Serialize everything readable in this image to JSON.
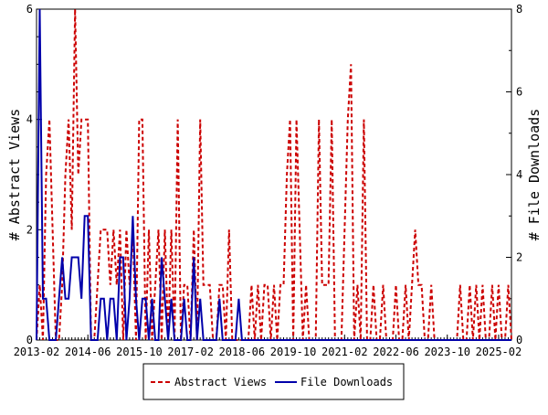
{
  "chart_data": {
    "type": "line",
    "title": "",
    "ylabel_left": "# Abstract Views",
    "ylabel_right": "# File Downloads",
    "x_ticks": [
      "2013-02",
      "2014-06",
      "2015-10",
      "2017-02",
      "2018-06",
      "2019-10",
      "2021-02",
      "2022-06",
      "2023-10",
      "2025-02"
    ],
    "x_range": [
      "2013-02",
      "2025-06"
    ],
    "ylim_left": [
      0,
      6
    ],
    "ylim_right": [
      0,
      8
    ],
    "y_ticks_left": [
      0,
      2,
      4,
      6
    ],
    "y_ticks_right": [
      0,
      2,
      4,
      6,
      8
    ],
    "grid": false,
    "legend_position": "bottom",
    "series": [
      {
        "name": "Abstract Views",
        "axis": "left",
        "color": "#cc0000",
        "style": "dashed",
        "points": [
          [
            "2013-02",
            0
          ],
          [
            "2013-03",
            1
          ],
          [
            "2013-04",
            0
          ],
          [
            "2013-05",
            3
          ],
          [
            "2013-06",
            4
          ],
          [
            "2013-07",
            2
          ],
          [
            "2013-08",
            0
          ],
          [
            "2013-09",
            0
          ],
          [
            "2013-10",
            1
          ],
          [
            "2013-11",
            3
          ],
          [
            "2013-12",
            4
          ],
          [
            "2014-01",
            2
          ],
          [
            "2014-02",
            6
          ],
          [
            "2014-03",
            3
          ],
          [
            "2014-04",
            4
          ],
          [
            "2014-05",
            4
          ],
          [
            "2014-06",
            4
          ],
          [
            "2014-07",
            0
          ],
          [
            "2014-08",
            0
          ],
          [
            "2014-09",
            1
          ],
          [
            "2014-10",
            2
          ],
          [
            "2014-11",
            2
          ],
          [
            "2014-12",
            2
          ],
          [
            "2015-01",
            1
          ],
          [
            "2015-02",
            2
          ],
          [
            "2015-03",
            1
          ],
          [
            "2015-04",
            2
          ],
          [
            "2015-05",
            0
          ],
          [
            "2015-06",
            2
          ],
          [
            "2015-07",
            1
          ],
          [
            "2015-08",
            2
          ],
          [
            "2015-09",
            0
          ],
          [
            "2015-10",
            4
          ],
          [
            "2015-11",
            4
          ],
          [
            "2015-12",
            0
          ],
          [
            "2016-01",
            2
          ],
          [
            "2016-02",
            0
          ],
          [
            "2016-03",
            1
          ],
          [
            "2016-04",
            2
          ],
          [
            "2016-05",
            0
          ],
          [
            "2016-06",
            2
          ],
          [
            "2016-07",
            0
          ],
          [
            "2016-08",
            2
          ],
          [
            "2016-09",
            0
          ],
          [
            "2016-10",
            4
          ],
          [
            "2016-11",
            0
          ],
          [
            "2016-12",
            1
          ],
          [
            "2017-01",
            1
          ],
          [
            "2017-02",
            0
          ],
          [
            "2017-03",
            2
          ],
          [
            "2017-04",
            0
          ],
          [
            "2017-05",
            4
          ],
          [
            "2017-06",
            1
          ],
          [
            "2017-07",
            1
          ],
          [
            "2017-08",
            1
          ],
          [
            "2017-09",
            0
          ],
          [
            "2017-10",
            0
          ],
          [
            "2017-11",
            1
          ],
          [
            "2017-12",
            1
          ],
          [
            "2018-01",
            0
          ],
          [
            "2018-02",
            2
          ],
          [
            "2018-03",
            0
          ],
          [
            "2018-04",
            0
          ],
          [
            "2018-05",
            0
          ],
          [
            "2018-06",
            0
          ],
          [
            "2018-07",
            0
          ],
          [
            "2018-08",
            0
          ],
          [
            "2018-09",
            1
          ],
          [
            "2018-10",
            0
          ],
          [
            "2018-11",
            1
          ],
          [
            "2018-12",
            0
          ],
          [
            "2019-01",
            1
          ],
          [
            "2019-02",
            1
          ],
          [
            "2019-03",
            0
          ],
          [
            "2019-04",
            1
          ],
          [
            "2019-05",
            0
          ],
          [
            "2019-06",
            1
          ],
          [
            "2019-07",
            1
          ],
          [
            "2019-08",
            3
          ],
          [
            "2019-09",
            4
          ],
          [
            "2019-10",
            0
          ],
          [
            "2019-11",
            4
          ],
          [
            "2019-12",
            2
          ],
          [
            "2020-01",
            0
          ],
          [
            "2020-02",
            1
          ],
          [
            "2020-03",
            0
          ],
          [
            "2020-04",
            0
          ],
          [
            "2020-05",
            0
          ],
          [
            "2020-06",
            4
          ],
          [
            "2020-07",
            1
          ],
          [
            "2020-08",
            1
          ],
          [
            "2020-09",
            1
          ],
          [
            "2020-10",
            4
          ],
          [
            "2020-11",
            0
          ],
          [
            "2020-12",
            0
          ],
          [
            "2021-01",
            0
          ],
          [
            "2021-02",
            2
          ],
          [
            "2021-03",
            4
          ],
          [
            "2021-04",
            5
          ],
          [
            "2021-05",
            0
          ],
          [
            "2021-06",
            1
          ],
          [
            "2021-07",
            0
          ],
          [
            "2021-08",
            4
          ],
          [
            "2021-09",
            0
          ],
          [
            "2021-10",
            0
          ],
          [
            "2021-11",
            1
          ],
          [
            "2021-12",
            0
          ],
          [
            "2022-01",
            0
          ],
          [
            "2022-02",
            1
          ],
          [
            "2022-03",
            0
          ],
          [
            "2022-04",
            0
          ],
          [
            "2022-05",
            0
          ],
          [
            "2022-06",
            1
          ],
          [
            "2022-07",
            0
          ],
          [
            "2022-08",
            0
          ],
          [
            "2022-09",
            1
          ],
          [
            "2022-10",
            0
          ],
          [
            "2022-11",
            1
          ],
          [
            "2022-12",
            2
          ],
          [
            "2023-01",
            1
          ],
          [
            "2023-02",
            1
          ],
          [
            "2023-03",
            0
          ],
          [
            "2023-04",
            0
          ],
          [
            "2023-05",
            1
          ],
          [
            "2023-06",
            0
          ],
          [
            "2023-07",
            0
          ],
          [
            "2023-08",
            0
          ],
          [
            "2023-09",
            0
          ],
          [
            "2023-10",
            0
          ],
          [
            "2023-11",
            0
          ],
          [
            "2023-12",
            0
          ],
          [
            "2024-01",
            0
          ],
          [
            "2024-02",
            1
          ],
          [
            "2024-03",
            0
          ],
          [
            "2024-04",
            0
          ],
          [
            "2024-05",
            1
          ],
          [
            "2024-06",
            0
          ],
          [
            "2024-07",
            1
          ],
          [
            "2024-08",
            0
          ],
          [
            "2024-09",
            1
          ],
          [
            "2024-10",
            0
          ],
          [
            "2024-11",
            0
          ],
          [
            "2024-12",
            1
          ],
          [
            "2025-01",
            0
          ],
          [
            "2025-02",
            1
          ],
          [
            "2025-03",
            0
          ],
          [
            "2025-04",
            0
          ],
          [
            "2025-05",
            1
          ],
          [
            "2025-06",
            0
          ]
        ]
      },
      {
        "name": "File Downloads",
        "axis": "right",
        "color": "#0000aa",
        "style": "solid",
        "points": [
          [
            "2013-02",
            0
          ],
          [
            "2013-03",
            8
          ],
          [
            "2013-04",
            1
          ],
          [
            "2013-05",
            1
          ],
          [
            "2013-06",
            0
          ],
          [
            "2013-07",
            0
          ],
          [
            "2013-08",
            0
          ],
          [
            "2013-09",
            1
          ],
          [
            "2013-10",
            2
          ],
          [
            "2013-11",
            1
          ],
          [
            "2013-12",
            1
          ],
          [
            "2014-01",
            2
          ],
          [
            "2014-02",
            2
          ],
          [
            "2014-03",
            2
          ],
          [
            "2014-04",
            1
          ],
          [
            "2014-05",
            3
          ],
          [
            "2014-06",
            3
          ],
          [
            "2014-07",
            0
          ],
          [
            "2014-08",
            0
          ],
          [
            "2014-09",
            0
          ],
          [
            "2014-10",
            1
          ],
          [
            "2014-11",
            1
          ],
          [
            "2014-12",
            0
          ],
          [
            "2015-01",
            1
          ],
          [
            "2015-02",
            1
          ],
          [
            "2015-03",
            0
          ],
          [
            "2015-04",
            2
          ],
          [
            "2015-05",
            2
          ],
          [
            "2015-06",
            0
          ],
          [
            "2015-07",
            1
          ],
          [
            "2015-08",
            3
          ],
          [
            "2015-09",
            1
          ],
          [
            "2015-10",
            0
          ],
          [
            "2015-11",
            1
          ],
          [
            "2015-12",
            1
          ],
          [
            "2016-01",
            0
          ],
          [
            "2016-02",
            1
          ],
          [
            "2016-03",
            0
          ],
          [
            "2016-04",
            0
          ],
          [
            "2016-05",
            2
          ],
          [
            "2016-06",
            1
          ],
          [
            "2016-07",
            0
          ],
          [
            "2016-08",
            1
          ],
          [
            "2016-09",
            0
          ],
          [
            "2016-10",
            0
          ],
          [
            "2016-11",
            0
          ],
          [
            "2016-12",
            1
          ],
          [
            "2017-01",
            0
          ],
          [
            "2017-02",
            0
          ],
          [
            "2017-03",
            2
          ],
          [
            "2017-04",
            0
          ],
          [
            "2017-05",
            1
          ],
          [
            "2017-06",
            0
          ],
          [
            "2017-07",
            0
          ],
          [
            "2017-08",
            0
          ],
          [
            "2017-09",
            0
          ],
          [
            "2017-10",
            0
          ],
          [
            "2017-11",
            1
          ],
          [
            "2017-12",
            0
          ],
          [
            "2018-01",
            0
          ],
          [
            "2018-02",
            0
          ],
          [
            "2018-03",
            0
          ],
          [
            "2018-04",
            0
          ],
          [
            "2018-05",
            1
          ],
          [
            "2018-06",
            0
          ],
          [
            "2018-07",
            0
          ],
          [
            "2018-08",
            0
          ],
          [
            "2018-09",
            0
          ],
          [
            "2018-10",
            0
          ],
          [
            "2018-11",
            0
          ],
          [
            "2018-12",
            0
          ],
          [
            "2019-01",
            0
          ],
          [
            "2019-02",
            0
          ],
          [
            "2019-03",
            0
          ],
          [
            "2019-04",
            0
          ],
          [
            "2019-05",
            0
          ],
          [
            "2019-06",
            0
          ],
          [
            "2019-07",
            0
          ],
          [
            "2019-08",
            0
          ],
          [
            "2019-09",
            0
          ],
          [
            "2019-10",
            0
          ],
          [
            "2019-11",
            0
          ],
          [
            "2019-12",
            0
          ],
          [
            "2020-01",
            0
          ],
          [
            "2020-02",
            0
          ],
          [
            "2020-03",
            0
          ],
          [
            "2020-04",
            0
          ],
          [
            "2020-05",
            0
          ],
          [
            "2020-06",
            0
          ],
          [
            "2020-07",
            0
          ],
          [
            "2020-08",
            0
          ],
          [
            "2020-09",
            0
          ],
          [
            "2020-10",
            0
          ],
          [
            "2020-11",
            0
          ],
          [
            "2020-12",
            0
          ],
          [
            "2021-01",
            0
          ],
          [
            "2021-02",
            0
          ],
          [
            "2021-03",
            0
          ],
          [
            "2021-04",
            0
          ],
          [
            "2021-05",
            0
          ],
          [
            "2021-06",
            0
          ],
          [
            "2021-07",
            0
          ],
          [
            "2021-08",
            0
          ],
          [
            "2021-09",
            0
          ],
          [
            "2021-10",
            0
          ],
          [
            "2021-11",
            0
          ],
          [
            "2021-12",
            0
          ],
          [
            "2022-01",
            0
          ],
          [
            "2022-02",
            0
          ],
          [
            "2022-03",
            0
          ],
          [
            "2022-04",
            0
          ],
          [
            "2022-05",
            0
          ],
          [
            "2022-06",
            0
          ],
          [
            "2022-07",
            0
          ],
          [
            "2022-08",
            0
          ],
          [
            "2022-09",
            0
          ],
          [
            "2022-10",
            0
          ],
          [
            "2022-11",
            0
          ],
          [
            "2022-12",
            0
          ],
          [
            "2023-01",
            0
          ],
          [
            "2023-02",
            0
          ],
          [
            "2023-03",
            0
          ],
          [
            "2023-04",
            0
          ],
          [
            "2023-05",
            0
          ],
          [
            "2023-06",
            0
          ],
          [
            "2023-07",
            0
          ],
          [
            "2023-08",
            0
          ],
          [
            "2023-09",
            0
          ],
          [
            "2023-10",
            0
          ],
          [
            "2023-11",
            0
          ],
          [
            "2023-12",
            0
          ],
          [
            "2024-01",
            0
          ],
          [
            "2024-02",
            0
          ],
          [
            "2024-03",
            0
          ],
          [
            "2024-04",
            0
          ],
          [
            "2024-05",
            0
          ],
          [
            "2024-06",
            0
          ],
          [
            "2024-07",
            0
          ],
          [
            "2024-08",
            0
          ],
          [
            "2024-09",
            0
          ],
          [
            "2024-10",
            0
          ],
          [
            "2024-11",
            0
          ],
          [
            "2024-12",
            0
          ],
          [
            "2025-01",
            0
          ],
          [
            "2025-02",
            0
          ],
          [
            "2025-03",
            0
          ],
          [
            "2025-04",
            0
          ],
          [
            "2025-05",
            0
          ],
          [
            "2025-06",
            0
          ]
        ]
      }
    ]
  }
}
